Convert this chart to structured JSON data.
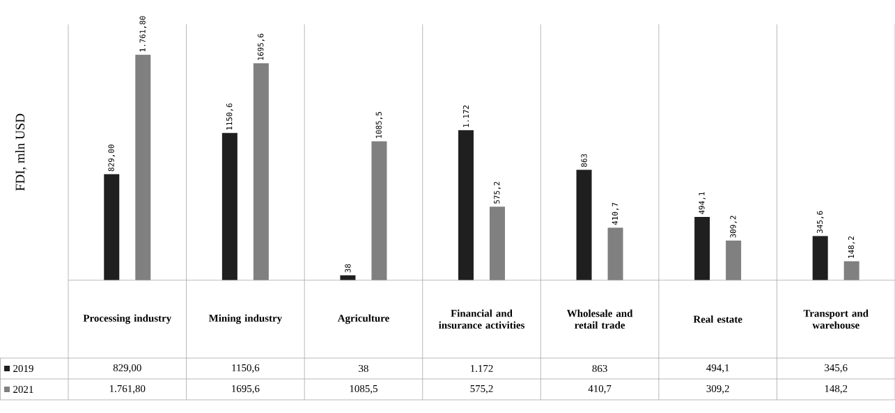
{
  "chart_data": {
    "type": "bar",
    "ylabel": "FDI, mln USD",
    "categories": [
      "Processing industry",
      "Mining industry",
      "Agriculture",
      "Financial and insurance activities",
      "Wholesale and retail trade",
      "Real estate",
      "Transport and warehouse"
    ],
    "series": [
      {
        "name": "2019",
        "color": "#1f1f1f",
        "values": [
          829,
          1150.6,
          38,
          1172,
          863,
          494.1,
          345.6
        ],
        "value_labels": [
          "829,00",
          "1150,6",
          "38",
          "1.172",
          "863",
          "494,1",
          "345,6"
        ]
      },
      {
        "name": "2021",
        "color": "#808080",
        "values": [
          1761.8,
          1695.6,
          1085.5,
          575.2,
          410.7,
          309.2,
          148.2
        ],
        "value_labels": [
          "1.761,80",
          "1695,6",
          "1085,5",
          "575,2",
          "410,7",
          "309,2",
          "148,2"
        ]
      }
    ],
    "ylim": [
      0,
      2000
    ],
    "legend": "bottom left"
  }
}
